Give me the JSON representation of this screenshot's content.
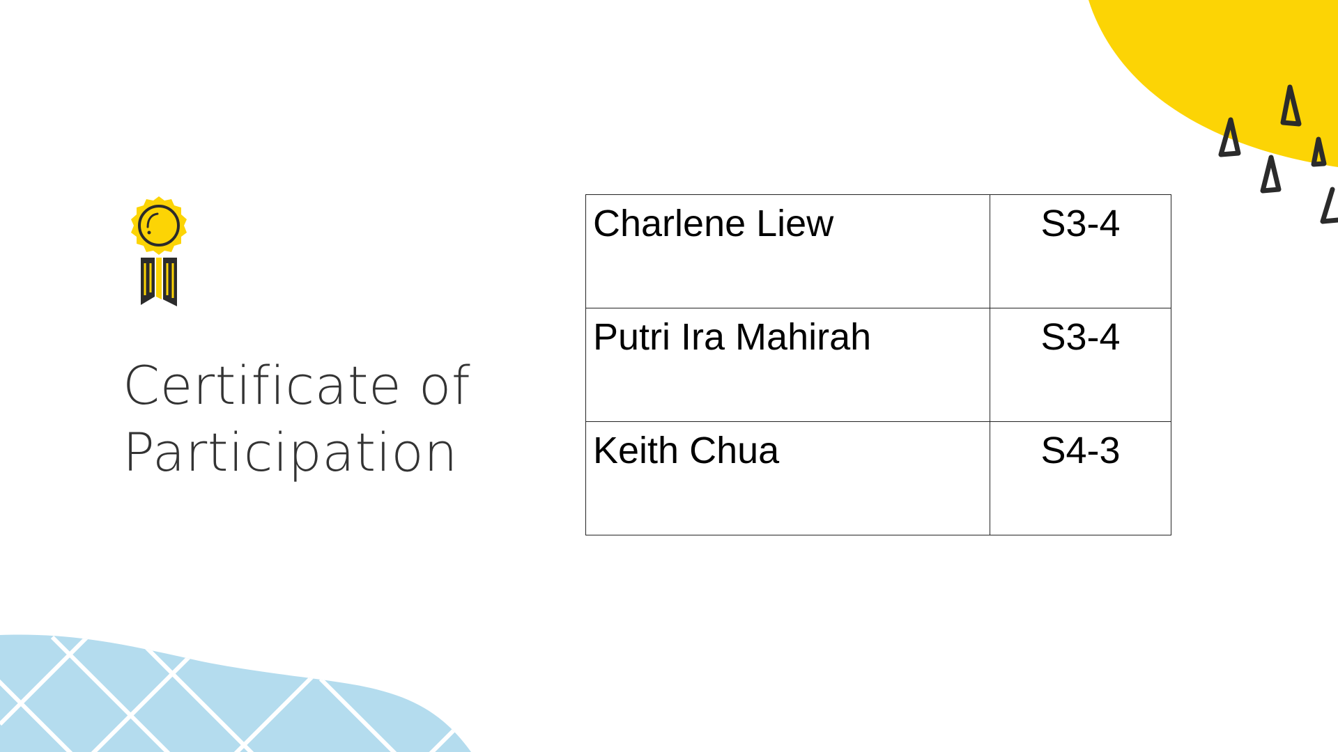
{
  "slide": {
    "title_line1": "Certificate of",
    "title_line2": "Participation",
    "award_icon": "award-ribbon-icon",
    "colors": {
      "accent_yellow": "#FCD405",
      "accent_blue": "#B4DCEE",
      "text_dark": "#333333"
    }
  },
  "participants": [
    {
      "name": "Charlene Liew",
      "class": "S3-4"
    },
    {
      "name": "Putri Ira Mahirah",
      "class": "S3-4"
    },
    {
      "name": "Keith Chua",
      "class": "S4-3"
    }
  ]
}
